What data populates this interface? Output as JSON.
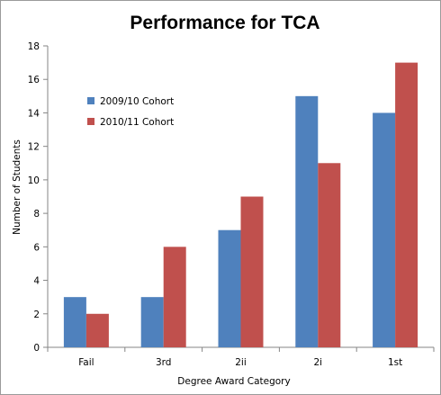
{
  "chart_data": {
    "type": "bar",
    "title": "Performance for TCA",
    "xlabel": "Degree Award Category",
    "ylabel": "Number of Students",
    "categories": [
      "Fail",
      "3rd",
      "2ii",
      "2i",
      "1st"
    ],
    "ylim": [
      0,
      18
    ],
    "yticks": [
      0,
      2,
      4,
      6,
      8,
      10,
      12,
      14,
      16,
      18
    ],
    "grid": false,
    "legend_position": "top-left",
    "series": [
      {
        "name": "2009/10 Cohort",
        "color": "#4F81BD",
        "values": [
          3,
          3,
          7,
          15,
          14
        ]
      },
      {
        "name": "2010/11 Cohort",
        "color": "#C0504D",
        "values": [
          2,
          6,
          9,
          11,
          17
        ]
      }
    ]
  }
}
